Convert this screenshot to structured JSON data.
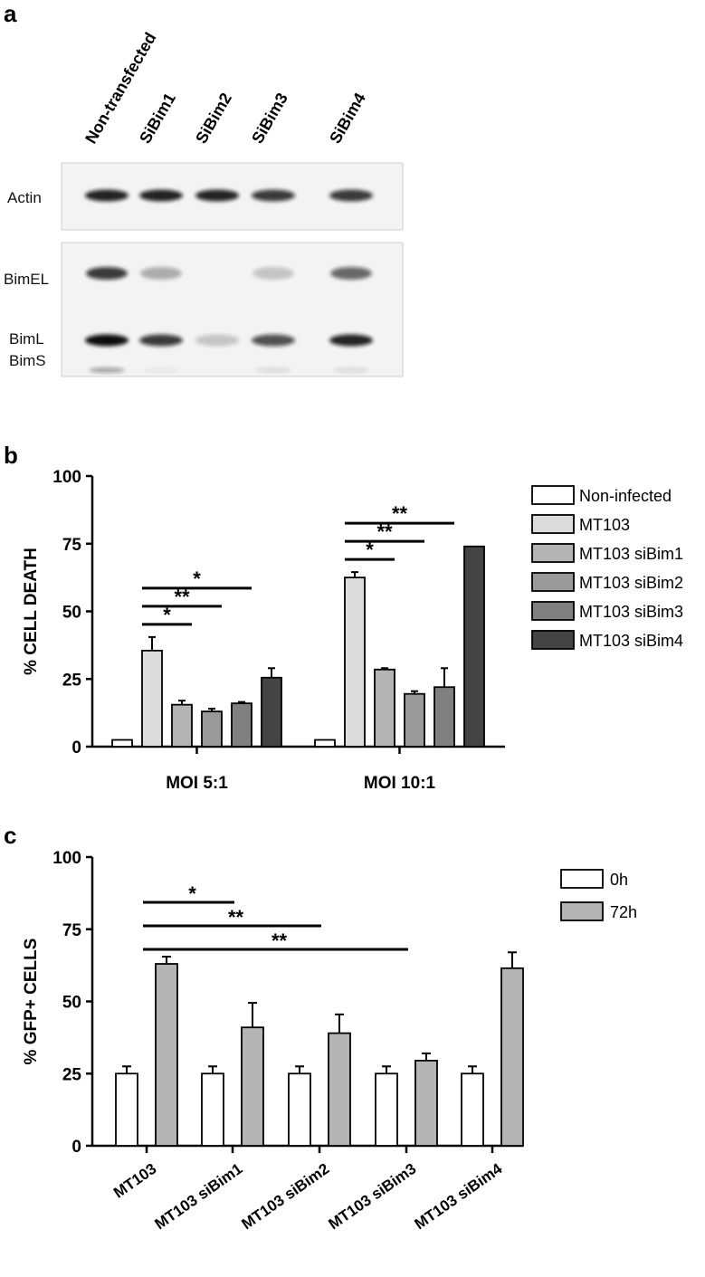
{
  "panel_letters": [
    "a",
    "b",
    "c"
  ],
  "blot": {
    "lanes": [
      "Non-transfected",
      "SiBim1",
      "SiBim2",
      "SiBim3",
      "SiBim4"
    ],
    "row_labels": [
      "Actin",
      "BimEL",
      "BimL",
      "BimS"
    ],
    "band_intensity": {
      "Actin": [
        0.9,
        0.9,
        0.9,
        0.8,
        0.8
      ],
      "BimEL": [
        0.8,
        0.3,
        0.0,
        0.2,
        0.6
      ],
      "BimL": [
        1.0,
        0.8,
        0.2,
        0.7,
        0.9
      ],
      "BimS": [
        0.35,
        0.05,
        0.0,
        0.1,
        0.1
      ]
    },
    "colors": {
      "background": "#f3f3f3",
      "band": "#111111"
    }
  },
  "chart_data": [
    {
      "type": "bar",
      "panel": "b",
      "ylabel": "% CELL DEATH",
      "ylim": [
        0,
        100
      ],
      "yticks": [
        "0",
        "25",
        "50",
        "75",
        "100"
      ],
      "categories": [
        "MOI 5:1",
        "MOI 10:1"
      ],
      "series": [
        {
          "name": "Non-infected",
          "color": "#ffffff",
          "values": [
            2.5,
            2.5
          ],
          "errors": [
            0,
            0
          ]
        },
        {
          "name": "MT103",
          "color": "#dcdcdc",
          "values": [
            35.5,
            62.5
          ],
          "errors": [
            5,
            2
          ]
        },
        {
          "name": "MT103 siBim1",
          "color": "#b4b4b4",
          "values": [
            15.5,
            28.5
          ],
          "errors": [
            1.5,
            0.5
          ]
        },
        {
          "name": "MT103 siBim2",
          "color": "#999999",
          "values": [
            13,
            19.5
          ],
          "errors": [
            1,
            1
          ]
        },
        {
          "name": "MT103 siBim3",
          "color": "#808080",
          "values": [
            16,
            22
          ],
          "errors": [
            0.5,
            7
          ]
        },
        {
          "name": "MT103 siBim4",
          "color": "#444444",
          "values": [
            25.5,
            74
          ],
          "errors": [
            3.5,
            0
          ]
        }
      ],
      "significance": [
        {
          "group": 0,
          "from": 1,
          "to": 2,
          "label": "*"
        },
        {
          "group": 0,
          "from": 1,
          "to": 3,
          "label": "**"
        },
        {
          "group": 0,
          "from": 1,
          "to": 4,
          "label": "*"
        },
        {
          "group": 1,
          "from": 1,
          "to": 2,
          "label": "*"
        },
        {
          "group": 1,
          "from": 1,
          "to": 3,
          "label": "**"
        },
        {
          "group": 1,
          "from": 1,
          "to": 4,
          "label": "**"
        }
      ],
      "legend_position": "right"
    },
    {
      "type": "bar",
      "panel": "c",
      "ylabel": "% GFP+ CELLS",
      "ylim": [
        0,
        100
      ],
      "yticks": [
        "0",
        "25",
        "50",
        "75",
        "100"
      ],
      "categories": [
        "MT103",
        "MT103 siBim1",
        "MT103 siBim2",
        "MT103 siBim3",
        "MT103 siBim4"
      ],
      "series": [
        {
          "name": "0h",
          "color": "#ffffff",
          "values": [
            25,
            25,
            25,
            25,
            25
          ],
          "errors": [
            2.5,
            2.5,
            2.5,
            2.5,
            2.5
          ]
        },
        {
          "name": "72h",
          "color": "#b4b4b4",
          "values": [
            63,
            41,
            39,
            29.5,
            61.5
          ],
          "errors": [
            2.5,
            8.5,
            6.5,
            2.5,
            5.5
          ]
        }
      ],
      "significance": [
        {
          "from": 0,
          "to": 1,
          "label": "*"
        },
        {
          "from": 0,
          "to": 2,
          "label": "**"
        },
        {
          "from": 0,
          "to": 3,
          "label": "**"
        }
      ],
      "legend_position": "top-right"
    }
  ]
}
